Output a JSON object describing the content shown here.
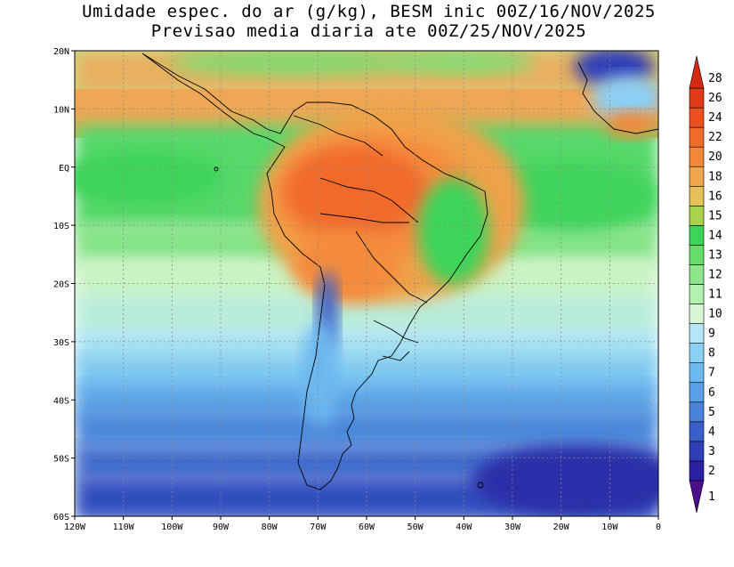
{
  "title": {
    "line1": "Umidade espec. do ar (g/kg), BESM inic 00Z/16/NOV/2025",
    "line2": "Previsao media diaria ate 00Z/25/NOV/2025"
  },
  "map": {
    "lon_range": [
      -120,
      0
    ],
    "lat_range": [
      -60,
      20
    ],
    "lon_ticks": [
      {
        "lon": -120,
        "label": "120W"
      },
      {
        "lon": -110,
        "label": "110W"
      },
      {
        "lon": -100,
        "label": "100W"
      },
      {
        "lon": -90,
        "label": "90W"
      },
      {
        "lon": -80,
        "label": "80W"
      },
      {
        "lon": -70,
        "label": "70W"
      },
      {
        "lon": -60,
        "label": "60W"
      },
      {
        "lon": -50,
        "label": "50W"
      },
      {
        "lon": -40,
        "label": "40W"
      },
      {
        "lon": -30,
        "label": "30W"
      },
      {
        "lon": -20,
        "label": "20W"
      },
      {
        "lon": -10,
        "label": "10W"
      },
      {
        "lon": 0,
        "label": "0"
      }
    ],
    "lat_ticks": [
      {
        "lat": 20,
        "label": "20N"
      },
      {
        "lat": 10,
        "label": "10N"
      },
      {
        "lat": 0,
        "label": "EQ"
      },
      {
        "lat": -10,
        "label": "10S"
      },
      {
        "lat": -20,
        "label": "20S"
      },
      {
        "lat": -30,
        "label": "30S"
      },
      {
        "lat": -40,
        "label": "40S"
      },
      {
        "lat": -50,
        "label": "50S"
      },
      {
        "lat": -60,
        "label": "60S"
      }
    ],
    "gridlines": "dotted"
  },
  "colorbar": {
    "levels": [
      {
        "label": "1",
        "color": "#4b0f8c"
      },
      {
        "label": "2",
        "color": "#2a1fa0"
      },
      {
        "label": "3",
        "color": "#2f3fb8"
      },
      {
        "label": "4",
        "color": "#3a5fc8"
      },
      {
        "label": "5",
        "color": "#4a82d8"
      },
      {
        "label": "6",
        "color": "#5aa0e6"
      },
      {
        "label": "7",
        "color": "#6cb8f0"
      },
      {
        "label": "8",
        "color": "#8ccff5"
      },
      {
        "label": "9",
        "color": "#b4e6f8"
      },
      {
        "label": "10",
        "color": "#d8f6d6"
      },
      {
        "label": "11",
        "color": "#b4f0b0"
      },
      {
        "label": "12",
        "color": "#8ee68a"
      },
      {
        "label": "13",
        "color": "#66dc6a"
      },
      {
        "label": "14",
        "color": "#3ed45a"
      },
      {
        "label": "15",
        "color": "#a8d24a"
      },
      {
        "label": "16",
        "color": "#e6c05a"
      },
      {
        "label": "18",
        "color": "#f0a64a"
      },
      {
        "label": "20",
        "color": "#f4883a"
      },
      {
        "label": "22",
        "color": "#f26a2a"
      },
      {
        "label": "24",
        "color": "#ec5020"
      },
      {
        "label": "26",
        "color": "#e03a18"
      },
      {
        "label": "28",
        "color": "#d42a12"
      }
    ]
  }
}
